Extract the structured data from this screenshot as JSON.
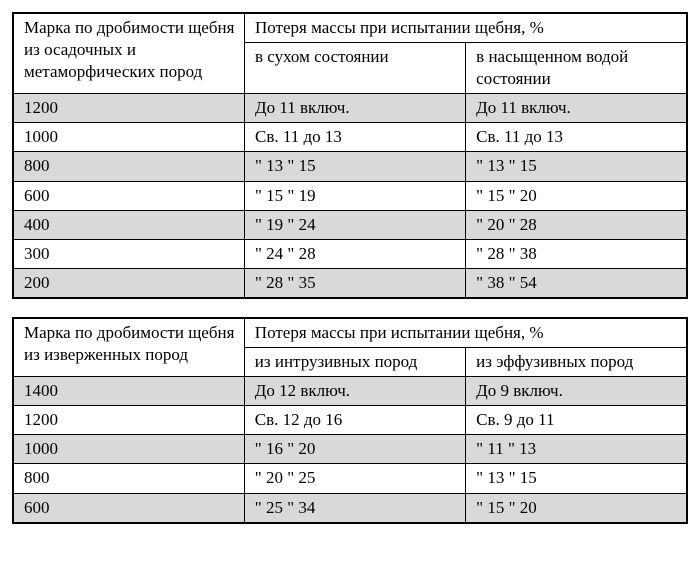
{
  "table1": {
    "header_left": "Марка по дробимости щебня из осадочных и метаморфических пород",
    "header_top": "Потеря массы при испытании щебня, %",
    "sub1": "в сухом состоянии",
    "sub2": "в насыщенном водой состоянии",
    "rows": [
      {
        "shade": true,
        "c0": "1200",
        "c1": "До 11 включ.",
        "c2": "До 11 включ."
      },
      {
        "shade": false,
        "c0": "1000",
        "c1": "Св. 11 до 13",
        "c2": "Св. 11 до 13"
      },
      {
        "shade": true,
        "c0": "800",
        "c1": "\" 13 \" 15",
        "c2": "\" 13 \" 15"
      },
      {
        "shade": false,
        "c0": "600",
        "c1": "\" 15 \" 19",
        "c2": "\" 15 \" 20"
      },
      {
        "shade": true,
        "c0": "400",
        "c1": "\" 19 \" 24",
        "c2": "\" 20 \" 28"
      },
      {
        "shade": false,
        "c0": "300",
        "c1": "\" 24 \" 28",
        "c2": "\" 28 \" 38"
      },
      {
        "shade": true,
        "c0": "200",
        "c1": "\" 28 \" 35",
        "c2": "\" 38 \" 54"
      }
    ]
  },
  "table2": {
    "header_left": "Марка по дробимости щебня из изверженных пород",
    "header_top": "Потеря массы при испытании щебня, %",
    "sub1": "из интрузивных пород",
    "sub2": "из эффузивных пород",
    "rows": [
      {
        "shade": true,
        "c0": "1400",
        "c1": "До 12 включ.",
        "c2": "До 9 включ."
      },
      {
        "shade": false,
        "c0": "1200",
        "c1": "Св. 12 до 16",
        "c2": "Св. 9 до 11"
      },
      {
        "shade": true,
        "c0": "1000",
        "c1": "\" 16 \" 20",
        "c2": "\" 11 \" 13"
      },
      {
        "shade": false,
        "c0": "800",
        "c1": "\" 20 \" 25",
        "c2": "\" 13 \" 15"
      },
      {
        "shade": true,
        "c0": "600",
        "c1": "\" 25 \" 34",
        "c2": "\" 15 \" 20"
      }
    ]
  }
}
